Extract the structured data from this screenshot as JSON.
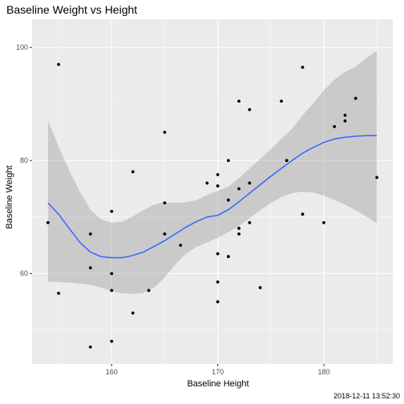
{
  "chart_data": {
    "type": "scatter",
    "title": "Baseline Weight vs Height",
    "xlabel": "Baseline Height",
    "ylabel": "Baseline Weight",
    "caption": "2018-12-11 13:52:30",
    "xlim": [
      152.5,
      186.5
    ],
    "ylim": [
      44,
      105
    ],
    "x_ticks": [
      160,
      170,
      180
    ],
    "y_ticks": [
      60,
      80,
      100
    ],
    "x_tick_labels": [
      "160",
      "170",
      "180"
    ],
    "y_tick_labels": [
      "60",
      "80",
      "100"
    ],
    "points": [
      {
        "x": 154,
        "y": 69
      },
      {
        "x": 155,
        "y": 97
      },
      {
        "x": 155,
        "y": 56.5
      },
      {
        "x": 158,
        "y": 67
      },
      {
        "x": 158,
        "y": 61
      },
      {
        "x": 158,
        "y": 47
      },
      {
        "x": 160,
        "y": 71
      },
      {
        "x": 160,
        "y": 60
      },
      {
        "x": 160,
        "y": 57
      },
      {
        "x": 160,
        "y": 48
      },
      {
        "x": 162,
        "y": 78
      },
      {
        "x": 162,
        "y": 53
      },
      {
        "x": 163.5,
        "y": 57
      },
      {
        "x": 165,
        "y": 85
      },
      {
        "x": 165,
        "y": 72.5
      },
      {
        "x": 165,
        "y": 67
      },
      {
        "x": 166.5,
        "y": 65
      },
      {
        "x": 169,
        "y": 76
      },
      {
        "x": 170,
        "y": 77.5
      },
      {
        "x": 170,
        "y": 75.5
      },
      {
        "x": 170,
        "y": 63.5
      },
      {
        "x": 170,
        "y": 58.5
      },
      {
        "x": 170,
        "y": 55
      },
      {
        "x": 171,
        "y": 80
      },
      {
        "x": 171,
        "y": 73
      },
      {
        "x": 171,
        "y": 63
      },
      {
        "x": 172,
        "y": 90.5
      },
      {
        "x": 172,
        "y": 75
      },
      {
        "x": 172,
        "y": 68
      },
      {
        "x": 172,
        "y": 67
      },
      {
        "x": 173,
        "y": 89
      },
      {
        "x": 173,
        "y": 76
      },
      {
        "x": 173,
        "y": 69
      },
      {
        "x": 174,
        "y": 57.5
      },
      {
        "x": 176,
        "y": 90.5
      },
      {
        "x": 176.5,
        "y": 80
      },
      {
        "x": 178,
        "y": 96.5
      },
      {
        "x": 178,
        "y": 70.5
      },
      {
        "x": 180,
        "y": 69
      },
      {
        "x": 181,
        "y": 86
      },
      {
        "x": 182,
        "y": 88
      },
      {
        "x": 182,
        "y": 87
      },
      {
        "x": 183,
        "y": 91
      },
      {
        "x": 185,
        "y": 77
      }
    ],
    "smooth": {
      "method": "loess",
      "color": "#3366ff",
      "band_color": "#999999",
      "x": [
        154,
        155,
        156,
        157,
        158,
        159,
        160,
        161,
        162,
        163,
        164,
        165,
        166,
        167,
        168,
        169,
        170,
        171,
        172,
        173,
        174,
        175,
        176,
        177,
        178,
        179,
        180,
        181,
        182,
        183,
        184,
        185
      ],
      "y": [
        72.5,
        70.5,
        68,
        65.5,
        63.8,
        63,
        62.8,
        62.8,
        63.2,
        63.8,
        64.8,
        65.8,
        67,
        68.2,
        69.2,
        70,
        70.3,
        71.3,
        72.7,
        74.2,
        75.7,
        77.2,
        78.6,
        80,
        81.3,
        82.3,
        83.2,
        83.8,
        84.1,
        84.3,
        84.4,
        84.4
      ],
      "lower": [
        58.5,
        58.5,
        58.4,
        58.2,
        58,
        57.5,
        56.9,
        56.5,
        56.4,
        56.6,
        57.5,
        59.3,
        61.6,
        63.5,
        64.7,
        65.5,
        66.3,
        67.3,
        68.4,
        69.8,
        71.2,
        72.5,
        73.5,
        74.2,
        74.5,
        74.3,
        73.8,
        73,
        72.2,
        71.2,
        70.1,
        68.9
      ],
      "upper": [
        87,
        82.5,
        78.3,
        74.5,
        71.3,
        69.6,
        69,
        69.2,
        70.1,
        71.2,
        72.2,
        72.6,
        72.5,
        72.6,
        73,
        73.9,
        74.6,
        75.4,
        76.9,
        78.6,
        80.3,
        82,
        83.8,
        85.6,
        88,
        90.1,
        92.4,
        94.3,
        95.7,
        96.6,
        98.1,
        99.4
      ]
    }
  }
}
